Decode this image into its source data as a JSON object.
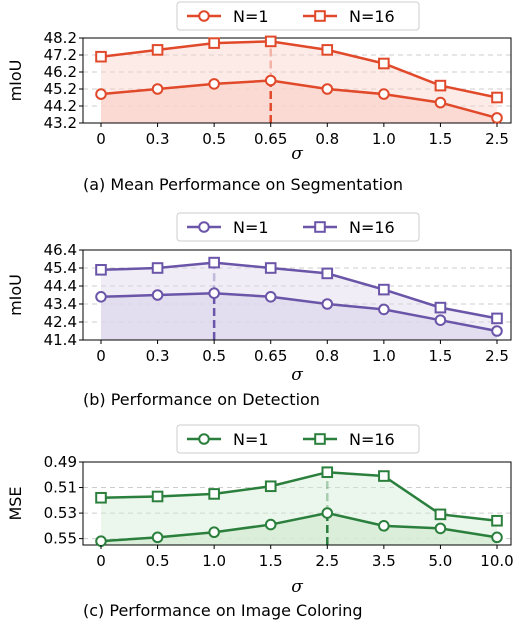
{
  "chart_data": [
    {
      "type": "line",
      "caption": "(a) Mean Performance on Segmentation",
      "xlabel": "σ",
      "ylabel": "mIoU",
      "categories": [
        "0",
        "0.3",
        "0.5",
        "0.65",
        "0.8",
        "1.0",
        "1.5",
        "2.5"
      ],
      "yticks": [
        "48.2",
        "47.2",
        "46.2",
        "45.2",
        "44.2",
        "43.2"
      ],
      "ylim": [
        43.2,
        48.2
      ],
      "y_inverted": false,
      "color": "#e0492a",
      "fill": "#fbd3cc",
      "highlight_index": 3,
      "legend_position": "top-center",
      "grid": "horizontal-dashed",
      "series": [
        {
          "name": "N=1",
          "marker": "circle",
          "values": [
            44.9,
            45.2,
            45.5,
            45.7,
            45.2,
            44.9,
            44.4,
            43.5
          ]
        },
        {
          "name": "N=16",
          "marker": "square",
          "values": [
            47.1,
            47.5,
            47.9,
            48.0,
            47.5,
            46.7,
            45.4,
            44.7
          ]
        }
      ]
    },
    {
      "type": "line",
      "caption": "(b) Performance on Detection",
      "xlabel": "σ",
      "ylabel": "mIoU",
      "categories": [
        "0",
        "0.3",
        "0.5",
        "0.65",
        "0.8",
        "1.0",
        "1.5",
        "2.5"
      ],
      "yticks": [
        "46.4",
        "45.4",
        "44.4",
        "43.4",
        "42.4",
        "41.4"
      ],
      "ylim": [
        41.4,
        46.4
      ],
      "y_inverted": false,
      "color": "#6a55a8",
      "fill": "#ddd7ec",
      "highlight_index": 2,
      "legend_position": "top-center",
      "grid": "horizontal-dashed",
      "series": [
        {
          "name": "N=1",
          "marker": "circle",
          "values": [
            43.8,
            43.9,
            44.0,
            43.8,
            43.4,
            43.1,
            42.5,
            41.9
          ]
        },
        {
          "name": "N=16",
          "marker": "square",
          "values": [
            45.3,
            45.4,
            45.7,
            45.4,
            45.1,
            44.2,
            43.2,
            42.6
          ]
        }
      ]
    },
    {
      "type": "line",
      "caption": "(c) Performance on Image Coloring",
      "xlabel": "σ",
      "ylabel": "MSE",
      "categories": [
        "0",
        "0.5",
        "1.0",
        "1.5",
        "2.5",
        "3.5",
        "5.0",
        "10.0"
      ],
      "yticks": [
        "0.49",
        "0.51",
        "0.53",
        "0.55"
      ],
      "ylim": [
        0.49,
        0.555
      ],
      "y_inverted": true,
      "color": "#2b7f3c",
      "fill": "#d3ebd4",
      "highlight_index": 4,
      "legend_position": "top-center",
      "grid": "horizontal-dashed",
      "series": [
        {
          "name": "N=1",
          "marker": "circle",
          "values": [
            0.552,
            0.549,
            0.545,
            0.539,
            0.53,
            0.54,
            0.542,
            0.549
          ]
        },
        {
          "name": "N=16",
          "marker": "square",
          "values": [
            0.518,
            0.517,
            0.515,
            0.509,
            0.498,
            0.501,
            0.531,
            0.536
          ]
        }
      ]
    }
  ]
}
